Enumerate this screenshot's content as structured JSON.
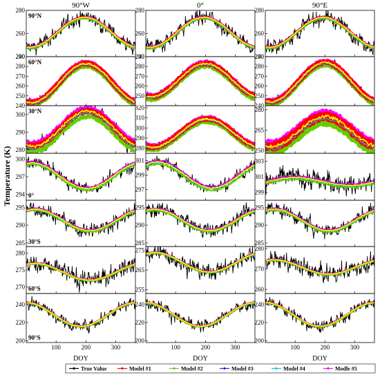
{
  "chart_data": {
    "type": "line",
    "ylabel": "Temperature (K)",
    "xlabel": "DOY",
    "columns": [
      "90°W",
      "0°",
      "90°E"
    ],
    "xlim": [
      0,
      366
    ],
    "xticks": [
      100,
      200,
      300
    ],
    "legend": {
      "placement": "bottom",
      "entries": [
        {
          "name": "True Value",
          "color": "#000000",
          "marker": "dot"
        },
        {
          "name": "Model #1",
          "color": "#ff0000",
          "marker": "dot"
        },
        {
          "name": "Model #2",
          "color": "#66cc00",
          "marker": "dot"
        },
        {
          "name": "Model #3",
          "color": "#2020ff",
          "marker": "dot"
        },
        {
          "name": "Model #4",
          "color": "#00cccc",
          "marker": "dot"
        },
        {
          "name": "Modle #5",
          "color": "#ff00ff",
          "marker": "dot"
        }
      ]
    },
    "model_colors": {
      "yellow": "#ffff00",
      "red": "#ff0000",
      "green": "#66cc00",
      "magenta": "#ff00ff",
      "blue": "#2020ff",
      "cyan": "#00cccc",
      "true": "#000000"
    },
    "rows": [
      {
        "latitude": "90°N",
        "panels": [
          {
            "ylim": [
              240,
              280
            ],
            "yticks": [
              240,
              260,
              280
            ],
            "mean": 261,
            "amplitude": 13,
            "peak_doy": 195,
            "noise": 6,
            "band": 1.5
          },
          {
            "ylim": [
              240,
              280
            ],
            "yticks": [
              240,
              260,
              280
            ],
            "mean": 261,
            "amplitude": 13,
            "peak_doy": 195,
            "noise": 6,
            "band": 1.5
          },
          {
            "ylim": [
              240,
              280
            ],
            "yticks": [
              240,
              260,
              280
            ],
            "mean": 261,
            "amplitude": 13,
            "peak_doy": 195,
            "noise": 6,
            "band": 1.5
          }
        ]
      },
      {
        "latitude": "60°N",
        "panels": [
          {
            "ylim": [
              240,
              290
            ],
            "yticks": [
              240,
              250,
              260,
              270,
              280,
              290
            ],
            "mean": 263,
            "amplitude": 20,
            "peak_doy": 200,
            "noise": 4,
            "band": 4
          },
          {
            "ylim": [
              240,
              290
            ],
            "yticks": [
              250,
              260,
              270,
              280,
              290
            ],
            "mean": 266,
            "amplitude": 17,
            "peak_doy": 200,
            "noise": 4,
            "band": 4
          },
          {
            "ylim": [
              240,
              290
            ],
            "yticks": [
              240,
              250,
              260,
              270,
              280,
              290
            ],
            "mean": 264,
            "amplitude": 20,
            "peak_doy": 200,
            "noise": 4,
            "band": 4
          }
        ]
      },
      {
        "latitude": "30°N",
        "panels": [
          {
            "ylim": [
              278,
              305
            ],
            "yticks": [
              280,
              290,
              300
            ],
            "mean": 292,
            "amplitude": 10,
            "peak_doy": 205,
            "noise": 4,
            "band": 4
          },
          {
            "ylim": [
              275,
              322
            ],
            "yticks": [
              280,
              290,
              300,
              310,
              320
            ],
            "mean": 295,
            "amplitude": 14,
            "peak_doy": 205,
            "noise": 4,
            "band": 4
          },
          {
            "ylim": [
              248,
              283
            ],
            "yticks": [
              250,
              265,
              280
            ],
            "mean": 264,
            "amplitude": 11,
            "peak_doy": 200,
            "noise": 4,
            "band": 6
          }
        ]
      },
      {
        "latitude": "0°",
        "panels": [
          {
            "ylim": [
              293,
              301
            ],
            "yticks": [
              294,
              297,
              300
            ],
            "mean": 297.2,
            "amplitude": 2.2,
            "peak_doy": 20,
            "noise": 1.0,
            "band": 0.4
          },
          {
            "ylim": [
              295.5,
              302
            ],
            "yticks": [
              297,
              299,
              301
            ],
            "mean": 299,
            "amplitude": 1.8,
            "peak_doy": 40,
            "noise": 0.8,
            "band": 0.4
          },
          {
            "ylim": [
              298,
              304
            ],
            "yticks": [
              299,
              301,
              303
            ],
            "mean": 300.4,
            "amplitude": 0.5,
            "peak_doy": 100,
            "noise": 1.2,
            "band": 0.3
          }
        ]
      },
      {
        "latitude": "30°S",
        "panels": [
          {
            "ylim": [
              284,
              297
            ],
            "yticks": [
              285,
              290,
              295
            ],
            "mean": 291.5,
            "amplitude": 3,
            "peak_doy": 30,
            "noise": 2,
            "band": 0.5
          },
          {
            "ylim": [
              284,
              297
            ],
            "yticks": [
              285,
              290,
              295
            ],
            "mean": 291.5,
            "amplitude": 3,
            "peak_doy": 30,
            "noise": 2,
            "band": 0.5
          },
          {
            "ylim": [
              284,
              297
            ],
            "yticks": [
              285,
              290,
              295
            ],
            "mean": 291.5,
            "amplitude": 3,
            "peak_doy": 30,
            "noise": 2,
            "band": 0.5
          }
        ]
      },
      {
        "latitude": "60°S",
        "panels": [
          {
            "ylim": [
              268,
              282
            ],
            "yticks": [
              270,
              275,
              280
            ],
            "mean": 274.5,
            "amplitude": 2.5,
            "peak_doy": 30,
            "noise": 2.5,
            "band": 0.3
          },
          {
            "ylim": [
              253,
              277
            ],
            "yticks": [
              255,
              265,
              275
            ],
            "mean": 269,
            "amplitude": 5,
            "peak_doy": 30,
            "noise": 4,
            "band": 0.5
          },
          {
            "ylim": [
              258,
              281
            ],
            "yticks": [
              260,
              270,
              280
            ],
            "mean": 271,
            "amplitude": 3.5,
            "peak_doy": 30,
            "noise": 4,
            "band": 0.5
          }
        ]
      },
      {
        "latitude": "90°S",
        "panels": [
          {
            "ylim": [
              198,
              252
            ],
            "yticks": [
              200,
              220,
              240
            ],
            "mean": 229,
            "amplitude": 13,
            "peak_doy": 1,
            "noise": 6,
            "band": 1
          },
          {
            "ylim": [
              198,
              252
            ],
            "yticks": [
              200,
              220,
              240
            ],
            "mean": 229,
            "amplitude": 13,
            "peak_doy": 1,
            "noise": 6,
            "band": 1
          },
          {
            "ylim": [
              198,
              252
            ],
            "yticks": [
              200,
              220,
              240
            ],
            "mean": 229,
            "amplitude": 13,
            "peak_doy": 1,
            "noise": 6,
            "band": 1
          }
        ]
      }
    ]
  }
}
